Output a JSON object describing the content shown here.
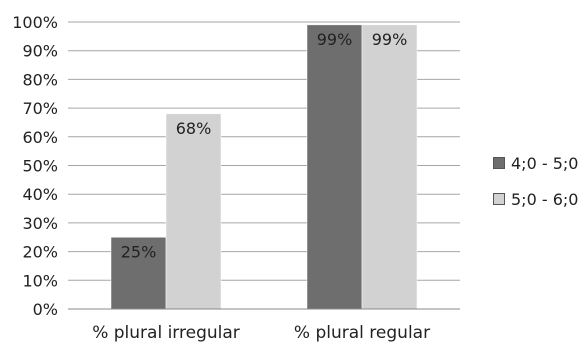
{
  "chart_data": {
    "type": "bar",
    "title": "",
    "xlabel": "",
    "ylabel": "",
    "categories": [
      "% plural irregular",
      "% plural regular"
    ],
    "series": [
      {
        "name": "4;0 - 5;0",
        "values": [
          25,
          99
        ],
        "labels": [
          "25%",
          "99%"
        ],
        "color": "#6e6e6e",
        "label_color": "#222222"
      },
      {
        "name": "5;0 - 6;0",
        "values": [
          68,
          99
        ],
        "labels": [
          "68%",
          "99%"
        ],
        "color": "#d2d2d2",
        "label_color": "#222222"
      }
    ],
    "ylim": [
      0,
      100
    ],
    "yticks": [
      0,
      10,
      20,
      30,
      40,
      50,
      60,
      70,
      80,
      90,
      100
    ],
    "ytick_labels": [
      "0%",
      "10%",
      "20%",
      "30%",
      "40%",
      "50%",
      "60%",
      "70%",
      "80%",
      "90%",
      "100%"
    ],
    "grid": true,
    "legend_position": "right"
  },
  "colors": {
    "grid": "#a6a6a6",
    "axis": "#888888"
  }
}
